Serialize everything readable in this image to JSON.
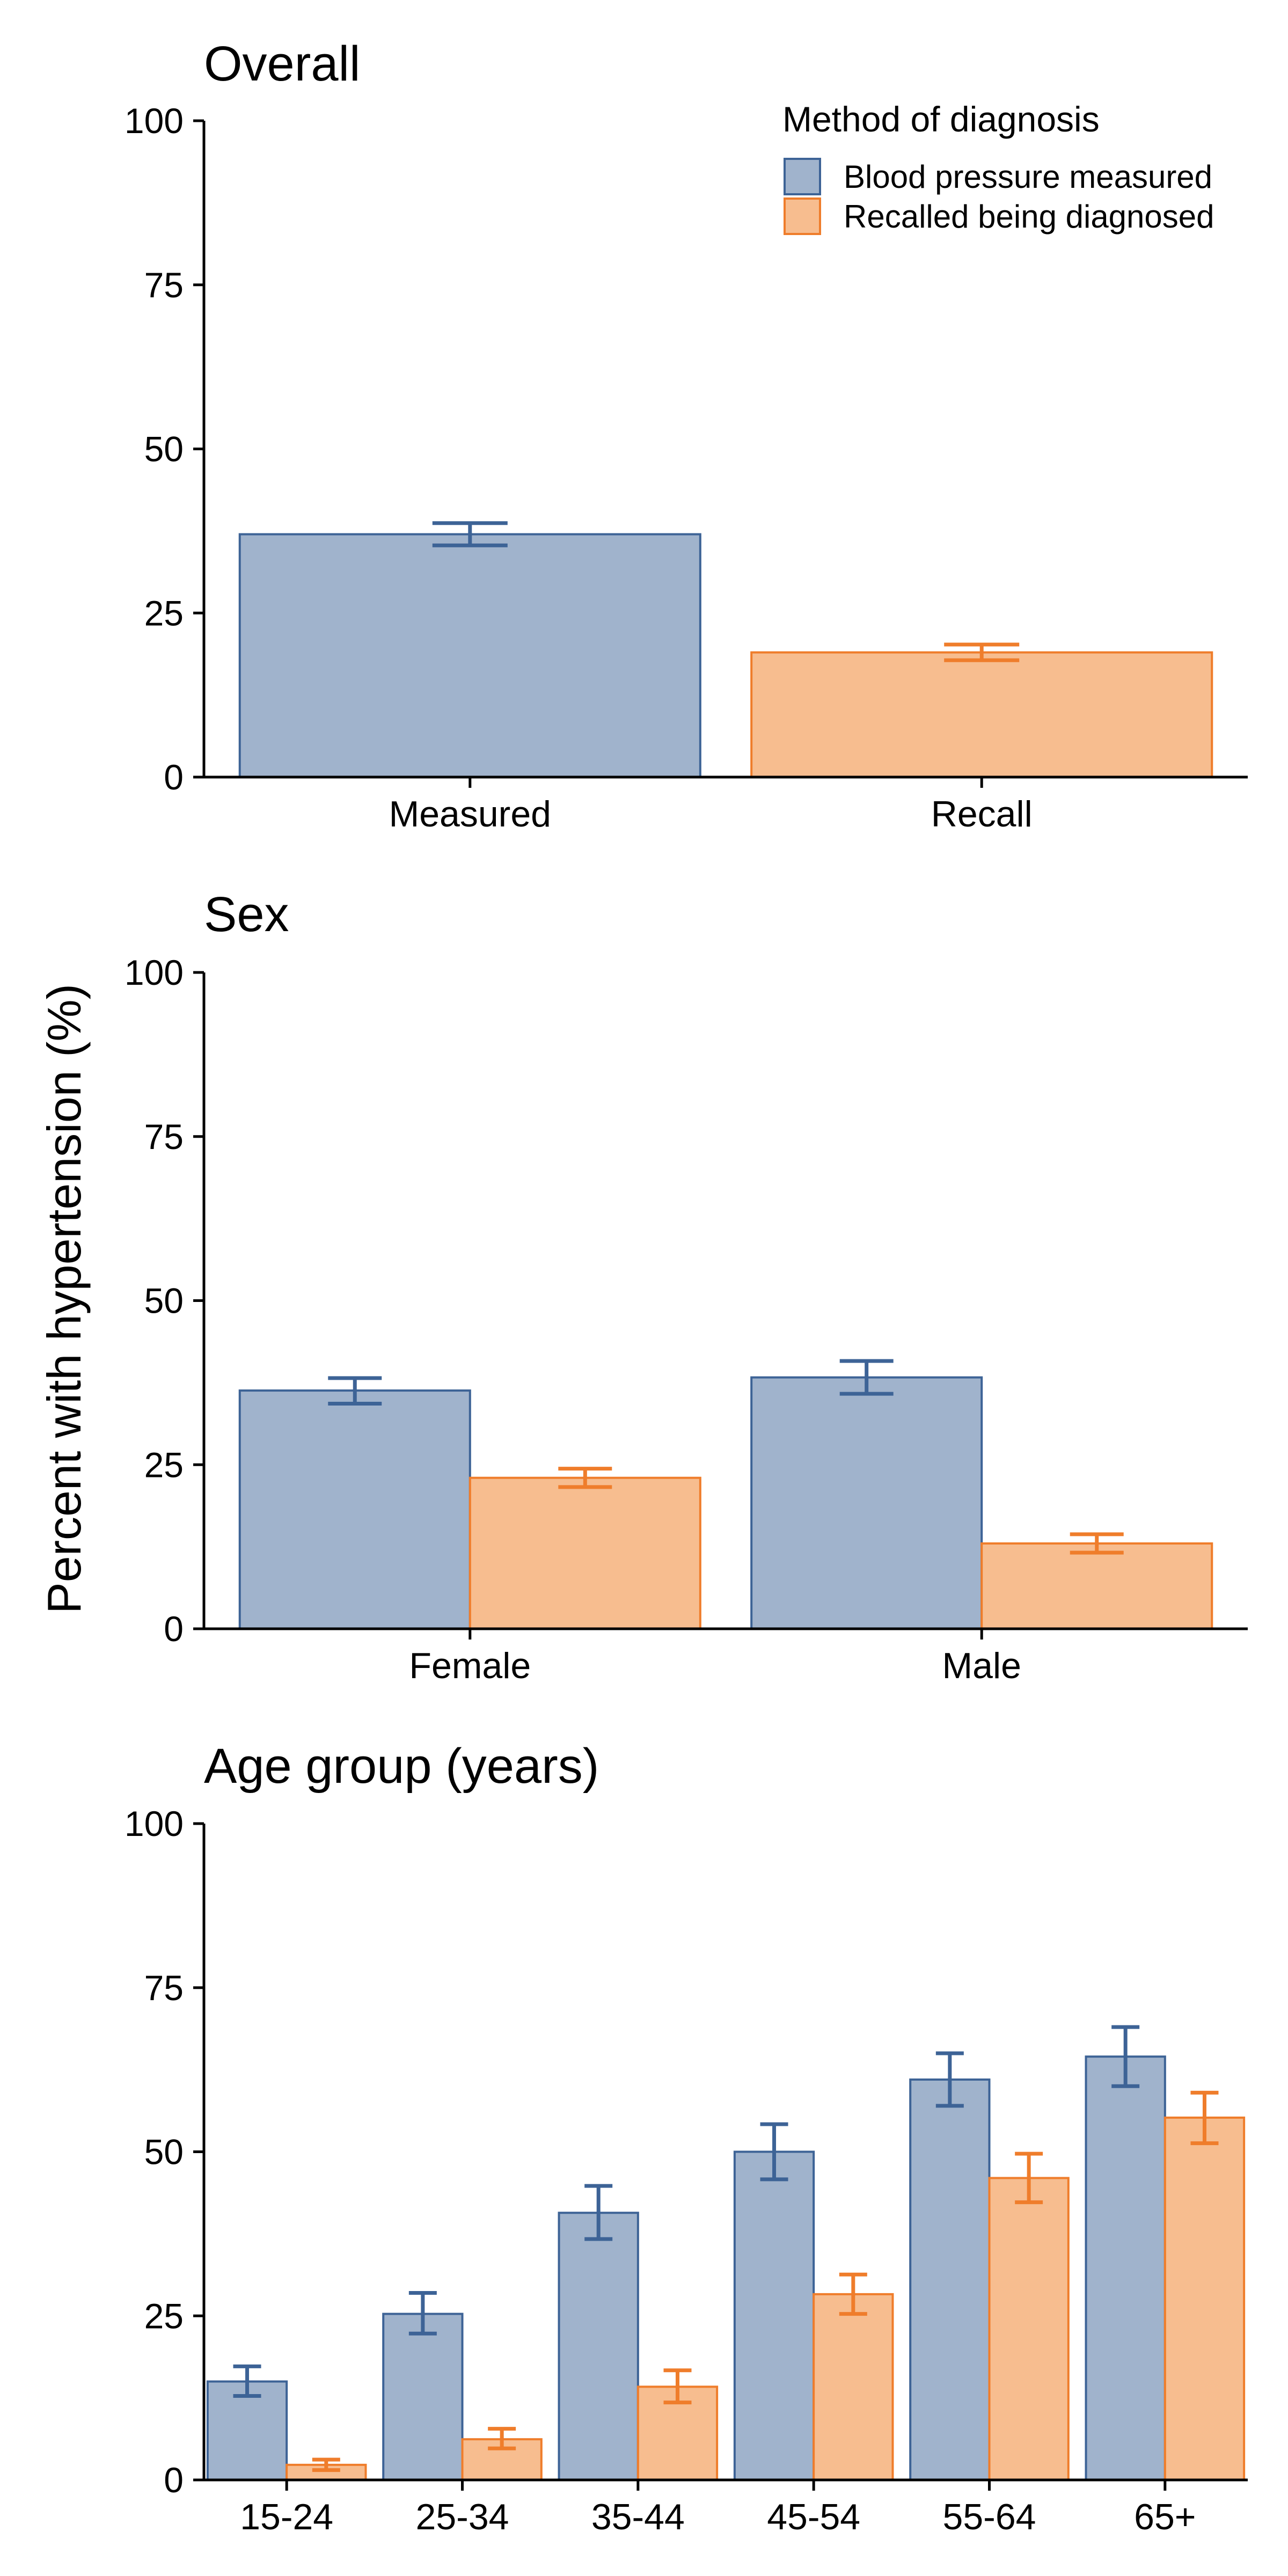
{
  "y_axis_title": "Percent with hypertension (%)",
  "legend": {
    "title": "Method of diagnosis",
    "placement": "top-right",
    "items": [
      {
        "label": "Blood pressure measured",
        "fill": "#a0b3cc",
        "stroke": "#3d6396"
      },
      {
        "label": "Recalled being diagnosed",
        "fill": "#f7bd8f",
        "stroke": "#ef7d2b"
      }
    ]
  },
  "colors": {
    "measured_fill": "#a0b3cc",
    "measured_stroke": "#3d6396",
    "recall_fill": "#f7bd8f",
    "recall_stroke": "#ef7d2b"
  },
  "chart_data": [
    {
      "type": "bar",
      "title": "Overall",
      "ylim": [
        0,
        100
      ],
      "yticks": [
        0,
        25,
        50,
        75,
        100
      ],
      "grid": false,
      "categories": [
        "Measured",
        "Recall"
      ],
      "bars": [
        {
          "category": "Measured",
          "method": "Blood pressure measured",
          "value": 37.0,
          "ci": [
            35.3,
            38.7
          ]
        },
        {
          "category": "Recall",
          "method": "Recalled being diagnosed",
          "value": 19.0,
          "ci": [
            17.8,
            20.2
          ]
        }
      ]
    },
    {
      "type": "bar",
      "title": "Sex",
      "ylim": [
        0,
        100
      ],
      "yticks": [
        0,
        25,
        50,
        75,
        100
      ],
      "grid": false,
      "categories": [
        "Female",
        "Male"
      ],
      "series": [
        {
          "name": "Blood pressure measured",
          "values": [
            36.3,
            38.3
          ],
          "ci": [
            [
              34.3,
              38.2
            ],
            [
              35.8,
              40.8
            ]
          ]
        },
        {
          "name": "Recalled being diagnosed",
          "values": [
            23.0,
            13.0
          ],
          "ci": [
            [
              21.6,
              24.4
            ],
            [
              11.6,
              14.4
            ]
          ]
        }
      ]
    },
    {
      "type": "bar",
      "title": "Age group (years)",
      "ylim": [
        0,
        100
      ],
      "yticks": [
        0,
        25,
        50,
        75,
        100
      ],
      "grid": false,
      "categories": [
        "15-24",
        "25-34",
        "35-44",
        "45-54",
        "55-64",
        "65+"
      ],
      "series": [
        {
          "name": "Blood pressure measured",
          "values": [
            15.0,
            25.3,
            40.7,
            50.0,
            61.0,
            64.5
          ],
          "ci": [
            [
              12.8,
              17.3
            ],
            [
              22.3,
              28.5
            ],
            [
              36.7,
              44.8
            ],
            [
              45.8,
              54.2
            ],
            [
              57.0,
              65.0
            ],
            [
              60.0,
              69.0
            ]
          ]
        },
        {
          "name": "Recalled being diagnosed",
          "values": [
            2.3,
            6.2,
            14.2,
            28.3,
            46.0,
            55.2
          ],
          "ci": [
            [
              1.5,
              3.1
            ],
            [
              4.8,
              7.8
            ],
            [
              11.8,
              16.7
            ],
            [
              25.3,
              31.3
            ],
            [
              42.3,
              49.7
            ],
            [
              51.3,
              59.0
            ]
          ]
        }
      ]
    }
  ]
}
